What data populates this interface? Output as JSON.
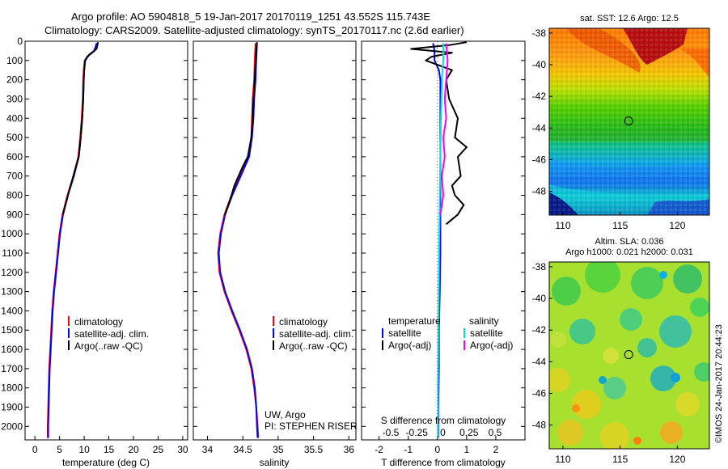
{
  "title_line1": "Argo profile: AO 5904818_5 19-Jan-2017 20170119_1251 43.552S 115.743E",
  "title_line2": "Climatology: CARS2009. Satellite-adjusted climatology: synTS_20170117.nc (2.6d earlier)",
  "credit": "©IMOS 24-Jan-2017 20:44:23",
  "chart_data": [
    {
      "id": "temperature",
      "type": "line",
      "xlabel": "temperature (deg C)",
      "ylabel": "",
      "xlim": [
        -2,
        31
      ],
      "ylim": [
        2070,
        0
      ],
      "xticks": [
        0,
        5,
        10,
        15,
        20,
        25,
        30
      ],
      "yticks": [
        0,
        100,
        200,
        300,
        400,
        500,
        600,
        700,
        800,
        900,
        1000,
        1100,
        1200,
        1300,
        1400,
        1500,
        1600,
        1700,
        1800,
        1900,
        2000
      ],
      "legend": [
        "climatology",
        "satellite-adj. clim.",
        "Argo(..raw -QC)"
      ],
      "series": [
        {
          "name": "climatology",
          "color": "#ff0000",
          "depth": [
            10,
            30,
            50,
            70,
            100,
            150,
            200,
            300,
            400,
            500,
            600,
            700,
            800,
            900,
            1000,
            1100,
            1200,
            1300,
            1400,
            1500,
            1600,
            1700,
            1800,
            1900,
            2000,
            2060
          ],
          "values": [
            12.6,
            12.4,
            12.1,
            11.0,
            10.1,
            9.9,
            9.8,
            9.7,
            9.5,
            9.2,
            8.8,
            7.8,
            6.6,
            5.6,
            5.0,
            4.6,
            4.2,
            3.8,
            3.5,
            3.3,
            3.1,
            2.9,
            2.8,
            2.7,
            2.6,
            2.6
          ]
        },
        {
          "name": "satellite-adj. clim.",
          "color": "#0000ff",
          "depth": [
            10,
            30,
            50,
            70,
            100,
            150,
            200,
            300,
            400,
            500,
            600,
            700,
            800,
            900,
            1000,
            1100,
            1200,
            1300,
            1400,
            1500,
            1600,
            1700,
            1800,
            1900,
            2000,
            2060
          ],
          "values": [
            12.5,
            12.3,
            12.0,
            11.0,
            10.2,
            10.0,
            9.9,
            9.8,
            9.6,
            9.3,
            8.9,
            7.9,
            6.7,
            5.7,
            5.1,
            4.7,
            4.3,
            3.9,
            3.6,
            3.4,
            3.2,
            3.0,
            2.9,
            2.8,
            2.7,
            2.7
          ]
        },
        {
          "name": "Argo(..raw -QC)",
          "color": "#000000",
          "depth": [
            5,
            20,
            40,
            60,
            80,
            100,
            150,
            200,
            300,
            400,
            500,
            600,
            700,
            800,
            900
          ],
          "values": [
            12.8,
            12.7,
            12.5,
            11.6,
            10.6,
            10.2,
            10.0,
            9.9,
            9.8,
            9.6,
            9.3,
            8.9,
            7.8,
            6.7,
            5.7
          ]
        }
      ]
    },
    {
      "id": "salinity",
      "type": "line",
      "xlabel": "salinity",
      "ylabel": "",
      "xlim": [
        33.8,
        36.1
      ],
      "ylim": [
        2070,
        0
      ],
      "xticks": [
        34,
        34.5,
        35,
        35.5,
        36
      ],
      "legend": [
        "climatology",
        "satellite-adj. clim.",
        "Argo(..raw -QC)"
      ],
      "annotation": [
        "UW, Argo",
        "PI: STEPHEN RISER"
      ],
      "series": [
        {
          "name": "climatology",
          "color": "#ff0000",
          "depth": [
            10,
            100,
            200,
            300,
            400,
            500,
            600,
            700,
            800,
            900,
            1000,
            1100,
            1200,
            1300,
            1400,
            1500,
            1600,
            1700,
            1800,
            1900,
            2000,
            2060
          ],
          "values": [
            34.68,
            34.67,
            34.66,
            34.64,
            34.63,
            34.62,
            34.58,
            34.46,
            34.34,
            34.24,
            34.18,
            34.15,
            34.17,
            34.24,
            34.34,
            34.45,
            34.55,
            34.62,
            34.66,
            34.69,
            34.71,
            34.72
          ]
        },
        {
          "name": "satellite-adj. clim.",
          "color": "#0000ff",
          "depth": [
            10,
            100,
            200,
            300,
            400,
            500,
            600,
            700,
            800,
            900,
            1000,
            1100,
            1200,
            1300,
            1400,
            1500,
            1600,
            1700,
            1800,
            1900,
            2000,
            2060
          ],
          "values": [
            34.7,
            34.69,
            34.68,
            34.66,
            34.65,
            34.63,
            34.59,
            34.47,
            34.35,
            34.25,
            34.19,
            34.16,
            34.18,
            34.25,
            34.35,
            34.46,
            34.56,
            34.63,
            34.67,
            34.69,
            34.7,
            34.71
          ]
        },
        {
          "name": "Argo(..raw -QC)",
          "color": "#000000",
          "depth": [
            5,
            50,
            100,
            200,
            300,
            400,
            500,
            600,
            650,
            700,
            750,
            800,
            900
          ],
          "values": [
            34.7,
            34.69,
            34.68,
            34.67,
            34.65,
            34.64,
            34.62,
            34.57,
            34.5,
            34.44,
            34.38,
            34.34,
            34.25
          ]
        }
      ]
    },
    {
      "id": "difference",
      "type": "line",
      "xlabel": "T difference from climatology",
      "x2label": "S difference from climatology",
      "xlim": [
        -2.6,
        3.0
      ],
      "ylim": [
        2070,
        0
      ],
      "xticks": [
        -2,
        -1,
        0,
        1,
        2
      ],
      "x2ticks": [
        "-0.5",
        "-0.25",
        "0",
        "0.25",
        "0.5"
      ],
      "legend_left_heading": "temperature",
      "legend_right_heading": "salinity",
      "legend_left": [
        "satellite",
        "Argo(-adj)"
      ],
      "legend_right": [
        "satellite",
        "Argo(-adj)"
      ],
      "series": [
        {
          "name": "temperature satellite",
          "color": "#0000ff",
          "depth": [
            10,
            50,
            100,
            150,
            200,
            300,
            500,
            700,
            900,
            1100,
            1300,
            1500,
            1700,
            1900,
            2060
          ],
          "values": [
            -0.15,
            -0.1,
            -0.1,
            0.05,
            0.1,
            0.1,
            0.1,
            0.1,
            0.1,
            0.1,
            0.08,
            0.05,
            0.05,
            0.03,
            0.03
          ]
        },
        {
          "name": "temperature Argo(-adj)",
          "color": "#000000",
          "depth": [
            5,
            20,
            40,
            60,
            80,
            100,
            150,
            200,
            300,
            400,
            500,
            550,
            600,
            700,
            750,
            800,
            850,
            900,
            950
          ],
          "values": [
            1.0,
            0.4,
            -0.9,
            0.5,
            -0.2,
            -0.4,
            0.5,
            0.3,
            0.4,
            0.7,
            0.6,
            1.0,
            0.7,
            0.8,
            0.5,
            0.6,
            0.9,
            0.7,
            0.3
          ]
        },
        {
          "name": "salinity satellite",
          "color": "#00e0e0",
          "depth": [
            10,
            100,
            200,
            400,
            600,
            800,
            1000,
            1200,
            1500,
            1800,
            2060
          ],
          "values": [
            0.2,
            0.2,
            0.15,
            0.12,
            0.1,
            0.08,
            0.06,
            0.05,
            0.03,
            0.02,
            0.02
          ]
        },
        {
          "name": "salinity Argo(-adj)",
          "color": "#ff00ff",
          "depth": [
            10,
            100,
            200,
            300,
            400,
            500,
            600,
            700,
            800,
            900
          ],
          "values": [
            0.3,
            0.35,
            0.3,
            0.25,
            0.3,
            0.2,
            0.25,
            0.15,
            0.2,
            0.1
          ]
        }
      ]
    },
    {
      "id": "sst_map",
      "type": "heatmap",
      "title": "sat. SST: 12.6 Argo: 12.5",
      "xlim": [
        108.8,
        122.8
      ],
      "ylim": [
        -49.5,
        -37.7
      ],
      "xticks": [
        110,
        115,
        120
      ],
      "yticks": [
        -38,
        -40,
        -42,
        -44,
        -46,
        -48
      ],
      "marker": {
        "lon": 115.743,
        "lat": -43.552
      }
    },
    {
      "id": "sla_map",
      "type": "heatmap",
      "title": "Altim. SLA: 0.036",
      "subtitle": "Argo h1000: 0.021 h2000: 0.031",
      "xlim": [
        108.8,
        122.8
      ],
      "ylim": [
        -49.5,
        -37.7
      ],
      "xticks": [
        110,
        115,
        120
      ],
      "yticks": [
        -38,
        -40,
        -42,
        -44,
        -46,
        -48
      ],
      "marker": {
        "lon": 115.743,
        "lat": -43.552
      }
    }
  ]
}
